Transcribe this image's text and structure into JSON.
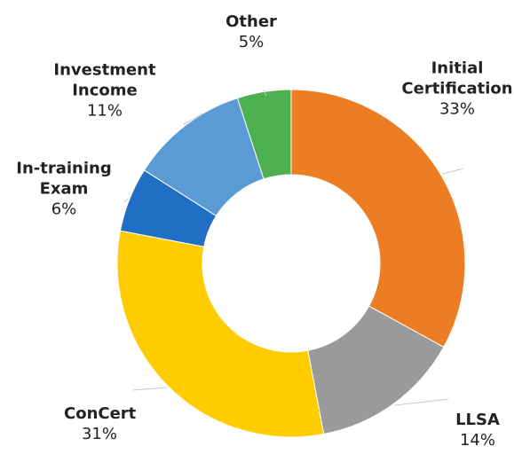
{
  "chart_data": {
    "type": "donut",
    "categories": [
      "Initial Certification",
      "LLSA",
      "ConCert",
      "In-training Exam",
      "Investment Income",
      "Other"
    ],
    "values": [
      33,
      14,
      31,
      6,
      11,
      5
    ],
    "value_labels": [
      "33%",
      "14%",
      "31%",
      "6%",
      "11%",
      "5%"
    ],
    "colors": [
      "#ed7d22",
      "#9a9a9a",
      "#ffcc00",
      "#1f6fc5",
      "#5b9bd5",
      "#4caf50"
    ]
  }
}
